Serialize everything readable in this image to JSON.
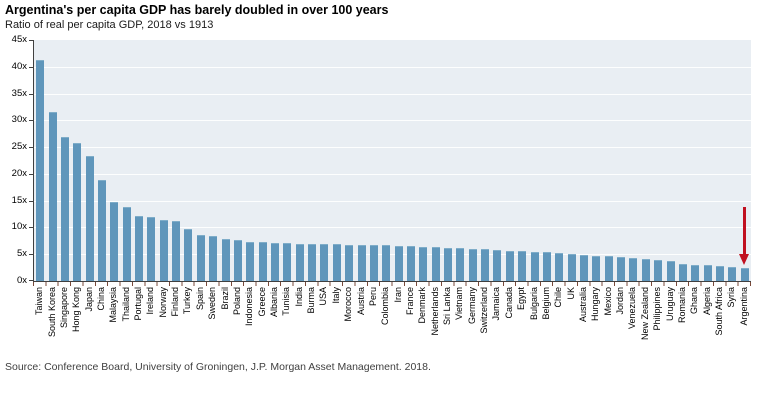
{
  "header": {
    "title": "Argentina's per capita GDP has barely doubled in over 100 years",
    "subtitle": "Ratio of real per capita GDP, 2018 vs 1913"
  },
  "source": "Source: Conference Board, University of Groningen, J.P. Morgan Asset Management. 2018.",
  "colors": {
    "bar": "#5f96bb",
    "bar_edge": "#7fadc9",
    "plot_bg": "#e9eef3",
    "gridline": "#fdfefe",
    "axis": "#404040",
    "xtick": "#7a4a3a",
    "arrow": "#c01020",
    "title_text": "#000000",
    "source_text": "#404040"
  },
  "chart_data": {
    "type": "bar",
    "title": "Argentina's per capita GDP has barely doubled in over 100 years",
    "subtitle": "Ratio of real per capita GDP, 2018 vs 1913",
    "xlabel": "",
    "ylabel": "",
    "ylim": [
      0,
      45
    ],
    "yticks": [
      0,
      5,
      10,
      15,
      20,
      25,
      30,
      35,
      40,
      45
    ],
    "ytick_suffix": "x",
    "grid": true,
    "legend": false,
    "categories": [
      "Taiwan",
      "South Korea",
      "Singapore",
      "Hong Kong",
      "Japan",
      "China",
      "Malaysia",
      "Thailand",
      "Portugal",
      "Ireland",
      "Norway",
      "Finland",
      "Turkey",
      "Spain",
      "Sweden",
      "Brazil",
      "Poland",
      "Indonesia",
      "Greece",
      "Albania",
      "Tunisia",
      "India",
      "Burma",
      "USA",
      "Italy",
      "Morocco",
      "Austria",
      "Peru",
      "Colombia",
      "Iran",
      "France",
      "Denmark",
      "Netherlands",
      "Sri Lanka",
      "Vietnam",
      "Germany",
      "Switzerland",
      "Jamaica",
      "Canada",
      "Egypt",
      "Bulgaria",
      "Belgium",
      "Chile",
      "UK",
      "Australia",
      "Hungary",
      "Mexico",
      "Jordan",
      "Venezuela",
      "New Zealand",
      "Philippines",
      "Uruguay",
      "Romania",
      "Ghana",
      "Algeria",
      "South Africa",
      "Syria",
      "Argentina"
    ],
    "values": [
      41.2,
      31.6,
      26.9,
      25.8,
      23.3,
      18.9,
      14.7,
      13.9,
      12.1,
      12.0,
      11.3,
      11.2,
      9.8,
      8.5,
      8.4,
      7.9,
      7.7,
      7.3,
      7.2,
      7.1,
      7.1,
      7.0,
      7.0,
      6.9,
      6.9,
      6.8,
      6.8,
      6.7,
      6.7,
      6.6,
      6.6,
      6.4,
      6.3,
      6.2,
      6.1,
      6.0,
      5.9,
      5.7,
      5.6,
      5.6,
      5.5,
      5.4,
      5.2,
      5.0,
      4.8,
      4.7,
      4.6,
      4.4,
      4.3,
      4.2,
      4.0,
      3.7,
      3.2,
      3.0,
      2.9,
      2.8,
      2.7,
      2.4
    ],
    "annotation": {
      "type": "down-arrow",
      "target_category": "Argentina",
      "color": "#c01020"
    }
  }
}
